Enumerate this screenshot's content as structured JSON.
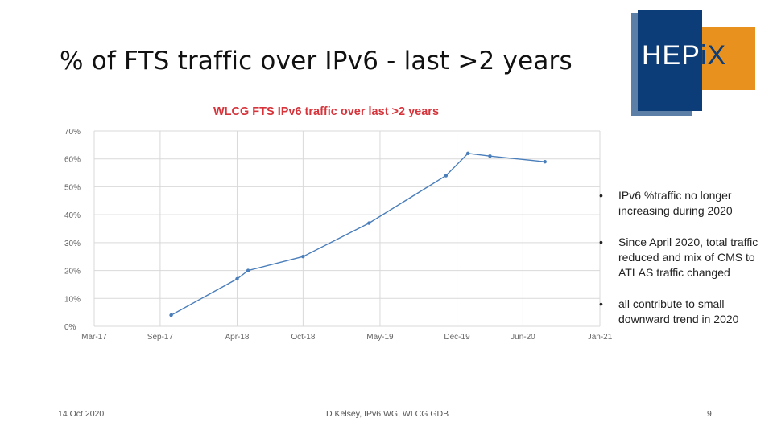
{
  "slide": {
    "title": "% of FTS traffic over IPv6 - last >2 years",
    "logo_text": {
      "main": "HEP",
      "accent": "iX"
    }
  },
  "chart_data": {
    "type": "line",
    "title": "WLCG FTS IPv6 traffic over last >2 years",
    "xlabel": "",
    "ylabel": "",
    "x_tick_labels": [
      "Mar-17",
      "Sep-17",
      "Apr-18",
      "Oct-18",
      "May-19",
      "Dec-19",
      "Jun-20",
      "Jan-21"
    ],
    "x_ticks": [
      "2017-03",
      "2017-09",
      "2018-04",
      "2018-10",
      "2019-05",
      "2019-12",
      "2020-06",
      "2021-01"
    ],
    "y_tick_labels": [
      "0%",
      "10%",
      "20%",
      "30%",
      "40%",
      "50%",
      "60%",
      "70%"
    ],
    "ylim": [
      0,
      70
    ],
    "grid": true,
    "series": [
      {
        "x": [
          "2017-10",
          "2018-04",
          "2018-05",
          "2018-10",
          "2019-04",
          "2019-11",
          "2020-01",
          "2020-03",
          "2020-08"
        ],
        "values": [
          4,
          17,
          20,
          25,
          37,
          54,
          62,
          61,
          59
        ]
      }
    ],
    "color": "#4a7ebb"
  },
  "bullets": [
    "IPv6 %traffic no longer increasing during 2020",
    "Since April 2020, total traffic reduced and mix of CMS to ATLAS traffic changed",
    "all contribute to small downward trend in 2020"
  ],
  "footer": {
    "date": "14 Oct 2020",
    "author": "D Kelsey, IPv6 WG, WLCG GDB",
    "page": "9"
  }
}
